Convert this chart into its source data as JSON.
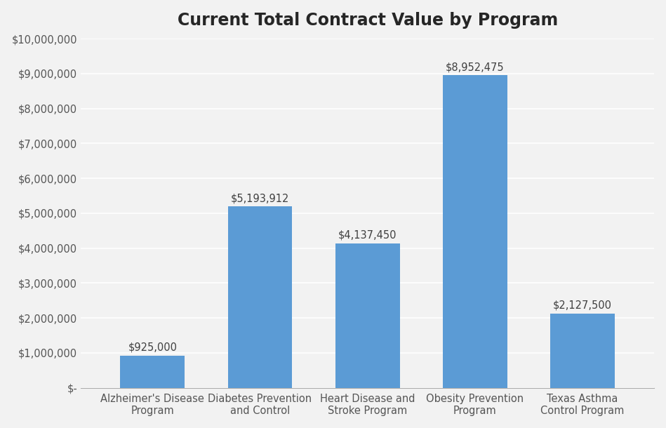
{
  "title": "Current Total Contract Value by Program",
  "categories": [
    "Alzheimer's Disease\nProgram",
    "Diabetes Prevention\nand Control",
    "Heart Disease and\nStroke Program",
    "Obesity Prevention\nProgram",
    "Texas Asthma\nControl Program"
  ],
  "values": [
    925000,
    5193912,
    4137450,
    8952475,
    2127500
  ],
  "labels": [
    "$925,000",
    "$5,193,912",
    "$4,137,450",
    "$8,952,475",
    "$2,127,500"
  ],
  "bar_color": "#5B9BD5",
  "background_color": "#F2F2F2",
  "plot_bg_color": "#F2F2F2",
  "ylim": [
    0,
    10000000
  ],
  "yticks": [
    0,
    1000000,
    2000000,
    3000000,
    4000000,
    5000000,
    6000000,
    7000000,
    8000000,
    9000000,
    10000000
  ],
  "ytick_labels": [
    "$-",
    "$1,000,000",
    "$2,000,000",
    "$3,000,000",
    "$4,000,000",
    "$5,000,000",
    "$6,000,000",
    "$7,000,000",
    "$8,000,000",
    "$9,000,000",
    "$10,000,000"
  ],
  "title_fontsize": 17,
  "tick_fontsize": 10.5,
  "label_fontsize": 10.5,
  "grid_color": "#FFFFFF",
  "bar_width": 0.6
}
